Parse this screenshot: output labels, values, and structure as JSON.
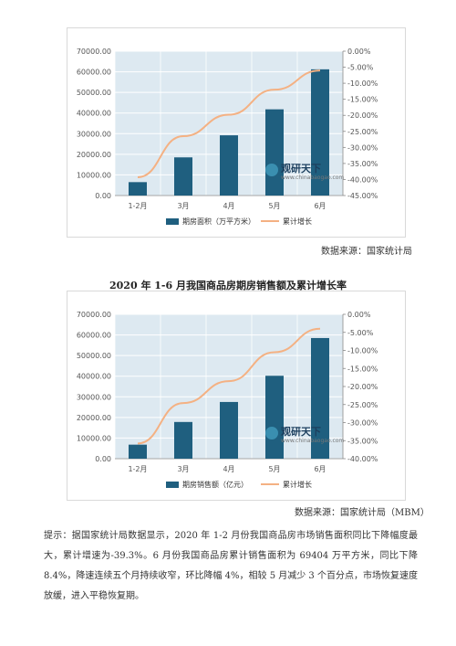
{
  "source1": "数据来源：国家统计局",
  "title2": "2020 年 1-6 月我国商品房期房销售额及累计增长率",
  "source2": "数据来源：国家统计局（MBM）",
  "note": "提示：据国家统计局数据显示，2020 年 1-2 月份我国商品房市场销售面积同比下降幅度最大，累计增速为-39.3%。6 月份我国商品房累计销售面积为 69404 万平方米，同比下降 8.4%，降速连续五个月持续收窄，环比降幅 4%，相较 5 月减少 3 个百分点，市场恢复速度放缓，进入平稳恢复期。",
  "watermark": {
    "cn": "观研天下",
    "en": "www.chinabaogao.com"
  },
  "colors": {
    "bar": "#1f5f7f",
    "line": "#f4b183",
    "plot_bg": "#dde9f1",
    "grid": "#ffffff"
  },
  "chart_data": [
    {
      "type": "bar",
      "categories": [
        "1-2月",
        "3月",
        "4月",
        "5月",
        "6月"
      ],
      "series": [
        {
          "name": "期房面积（万平方米）",
          "type": "bar",
          "axis": "left",
          "values": [
            6500,
            18500,
            29200,
            41800,
            61200
          ]
        },
        {
          "name": "累计增长",
          "type": "line",
          "axis": "right",
          "values": [
            -39.3,
            -26.5,
            -19.8,
            -12.0,
            -6.0
          ]
        }
      ],
      "y_left_ticks": [
        "0.00",
        "10000.00",
        "20000.00",
        "30000.00",
        "40000.00",
        "50000.00",
        "60000.00",
        "70000.00"
      ],
      "y_right_ticks": [
        "0.00%",
        "-5.00%",
        "-10.00%",
        "-15.00%",
        "-20.00%",
        "-25.00%",
        "-30.00%",
        "-35.00%",
        "-40.00%",
        "-45.00%"
      ],
      "ylim_left": [
        0,
        70000
      ],
      "ylim_right": [
        -45,
        0
      ],
      "legend": "bottom"
    },
    {
      "type": "bar",
      "categories": [
        "1-2月",
        "3月",
        "4月",
        "5月",
        "6月"
      ],
      "series": [
        {
          "name": "期房销售额（亿元）",
          "type": "bar",
          "axis": "left",
          "values": [
            6800,
            17800,
            27500,
            40200,
            58500
          ]
        },
        {
          "name": "累计增长",
          "type": "line",
          "axis": "right",
          "values": [
            -35.8,
            -24.6,
            -18.5,
            -10.5,
            -4.0
          ]
        }
      ],
      "y_left_ticks": [
        "0.00",
        "10000.00",
        "20000.00",
        "30000.00",
        "40000.00",
        "50000.00",
        "60000.00",
        "70000.00"
      ],
      "y_right_ticks": [
        "0.00%",
        "-5.00%",
        "-10.00%",
        "-15.00%",
        "-20.00%",
        "-25.00%",
        "-30.00%",
        "-35.00%",
        "-40.00%"
      ],
      "ylim_left": [
        0,
        70000
      ],
      "ylim_right": [
        -40,
        0
      ],
      "legend": "bottom"
    }
  ]
}
